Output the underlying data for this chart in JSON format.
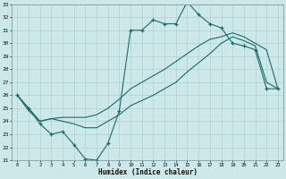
{
  "title": "",
  "xlabel": "Humidex (Indice chaleur)",
  "xlim": [
    -0.5,
    23.5
  ],
  "ylim": [
    21,
    33
  ],
  "yticks": [
    21,
    22,
    23,
    24,
    25,
    26,
    27,
    28,
    29,
    30,
    31,
    32,
    33
  ],
  "xticks": [
    0,
    1,
    2,
    3,
    4,
    5,
    6,
    7,
    8,
    9,
    10,
    11,
    12,
    13,
    14,
    15,
    16,
    17,
    18,
    19,
    20,
    21,
    22,
    23
  ],
  "bg_color": "#cce8e8",
  "grid_color": "#aacccc",
  "line_color": "#1a6b6b",
  "line1_y": [
    26.0,
    25.0,
    23.8,
    23.0,
    23.2,
    22.2,
    21.1,
    21.0,
    22.3,
    24.8,
    31.0,
    31.0,
    31.8,
    31.5,
    31.5,
    33.2,
    32.2,
    31.5,
    31.2,
    30.0,
    29.8,
    29.5,
    26.5,
    26.5
  ],
  "line2_y": [
    26.0,
    25.0,
    24.0,
    24.2,
    24.3,
    24.3,
    24.3,
    24.5,
    25.0,
    25.7,
    26.5,
    27.0,
    27.5,
    28.0,
    28.6,
    29.2,
    29.8,
    30.3,
    30.5,
    30.8,
    30.5,
    30.0,
    29.5,
    26.5
  ],
  "line3_y": [
    26.0,
    24.8,
    24.0,
    24.2,
    24.0,
    23.8,
    23.5,
    23.5,
    24.0,
    24.5,
    25.2,
    25.6,
    26.0,
    26.5,
    27.0,
    27.8,
    28.5,
    29.2,
    30.0,
    30.5,
    30.2,
    29.8,
    27.0,
    26.5
  ]
}
